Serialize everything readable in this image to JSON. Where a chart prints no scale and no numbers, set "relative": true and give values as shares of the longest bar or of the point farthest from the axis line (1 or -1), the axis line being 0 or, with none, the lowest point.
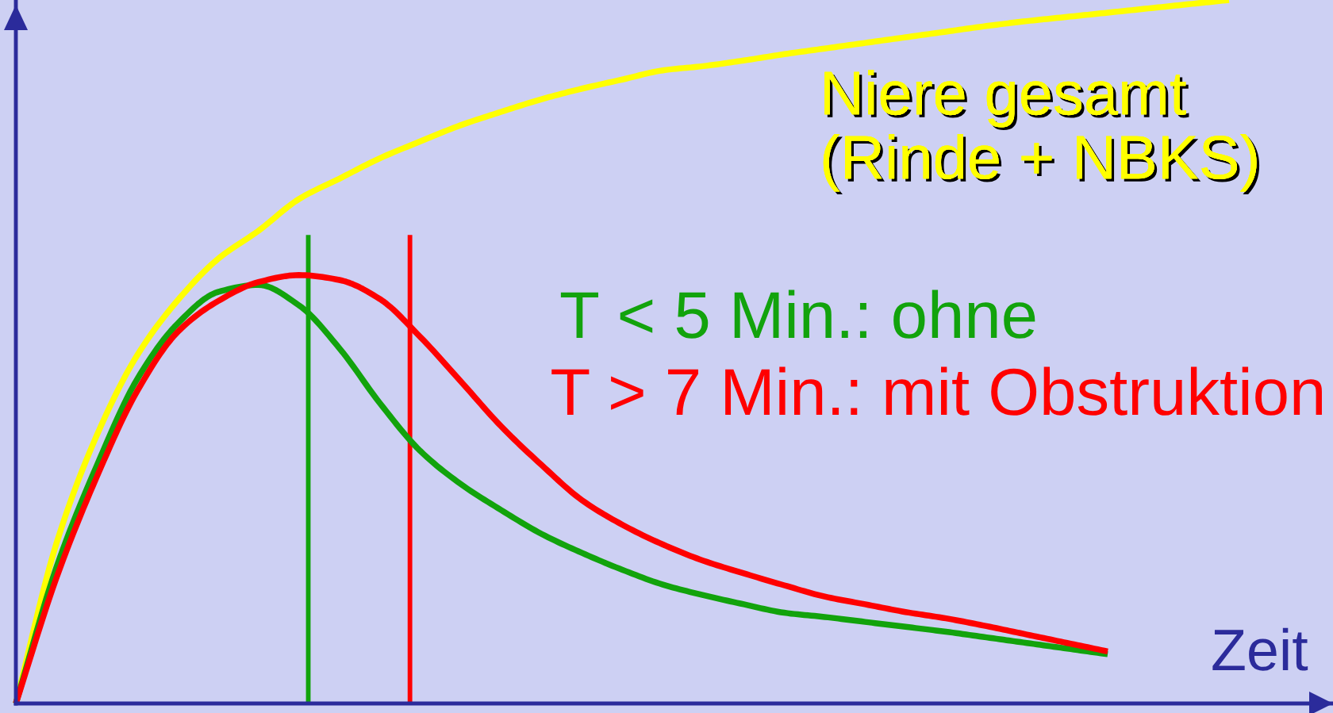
{
  "chart_data": {
    "type": "line",
    "relative": true,
    "xlabel": "Zeit",
    "marker": "none",
    "line_style": "solid",
    "categories": [
      null,
      null,
      null,
      null,
      null,
      null,
      null,
      null,
      null,
      null,
      null,
      null,
      null,
      null,
      null,
      null,
      null,
      null,
      null,
      null,
      null,
      null,
      null,
      null,
      null,
      null,
      null,
      null,
      null,
      null,
      null
    ],
    "series": [
      {
        "name": "Niere gesamt\n(Rinde + NBKS)",
        "color": "#ffff00",
        "values": [
          0,
          0.227,
          0.381,
          0.495,
          0.573,
          0.632,
          0.672,
          0.717,
          0.746,
          0.775,
          0.799,
          0.822,
          0.841,
          0.859,
          0.874,
          0.887,
          0.9,
          0.906,
          0.914,
          0.923,
          0.931,
          0.939,
          0.947,
          0.955,
          0.963,
          0.97,
          0.976,
          0.982,
          0.988,
          0.994,
          1.0
        ]
      },
      {
        "name": "T < 5 Min.: ohne",
        "color": "#12a30c",
        "values": [
          0,
          0.193,
          0.338,
          0.461,
          0.54,
          0.585,
          0.595,
          0.566,
          0.505,
          0.427,
          0.359,
          0.312,
          0.275,
          0.241,
          0.214,
          0.19,
          0.169,
          0.154,
          0.141,
          0.129,
          0.123,
          0.116,
          0.109,
          0.102,
          0.094,
          0.086,
          0.078,
          0.07,
          null,
          null,
          null
        ]
      },
      {
        "name": "T > 7 Min.: mit Obstruktion",
        "color": "#ff0000",
        "values": [
          0,
          0.178,
          0.322,
          0.444,
          0.528,
          0.572,
          0.599,
          0.609,
          0.602,
          0.575,
          0.521,
          0.458,
          0.394,
          0.339,
          0.289,
          0.254,
          0.226,
          0.203,
          0.185,
          0.168,
          0.152,
          0.141,
          0.13,
          0.121,
          0.11,
          0.098,
          0.086,
          0.074,
          null,
          null,
          null
        ]
      }
    ]
  }
}
